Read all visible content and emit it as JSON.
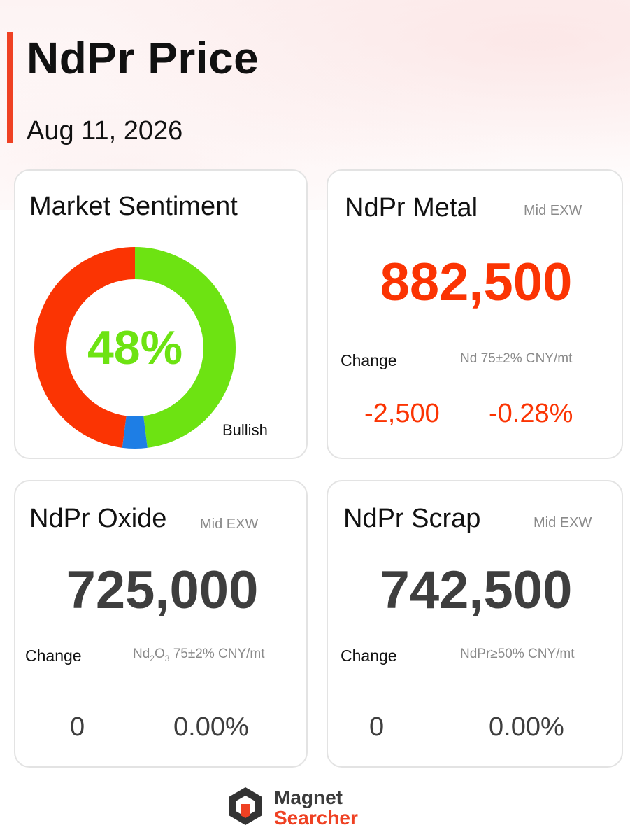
{
  "header": {
    "title": "NdPr Price",
    "date": "Aug 11, 2026"
  },
  "colors": {
    "accent": "#ef4123",
    "bullish": "#6de312",
    "bearish": "#fb3403",
    "neutral": "#1e7ee5",
    "dark": "#3e3e3e"
  },
  "sentiment": {
    "title": "Market Sentiment",
    "percent_label": "48%",
    "bullish_label": "Bullish",
    "segments": [
      {
        "name": "bullish",
        "value": 48,
        "color": "#6de312"
      },
      {
        "name": "neutral",
        "value": 4,
        "color": "#1e7ee5"
      },
      {
        "name": "bearish",
        "value": 48,
        "color": "#fb3403"
      }
    ]
  },
  "metal": {
    "title": "NdPr Metal",
    "meta": "Mid  EXW",
    "price": "882,500",
    "change_label": "Change",
    "spec": "Nd 75±2% CNY/mt",
    "change_abs": "-2,500",
    "change_pct": "-0.28%"
  },
  "oxide": {
    "title": "NdPr Oxide",
    "meta": "Mid  EXW",
    "price": "725,000",
    "change_label": "Change",
    "spec_prefix": "Nd",
    "spec_sub1": "2",
    "spec_mid": "O",
    "spec_sub2": "3",
    "spec_suffix": " 75±2% CNY/mt",
    "change_abs": "0",
    "change_pct": "0.00%"
  },
  "scrap": {
    "title": "NdPr Scrap",
    "meta": "Mid  EXW",
    "price": "742,500",
    "change_label": "Change",
    "spec": "NdPr≥50% CNY/mt",
    "change_abs": "0",
    "change_pct": "0.00%"
  },
  "footer": {
    "brand_line1": "Magnet",
    "brand_line2": "Searcher",
    "logo_icon": "magnet-searcher-logo-icon"
  }
}
